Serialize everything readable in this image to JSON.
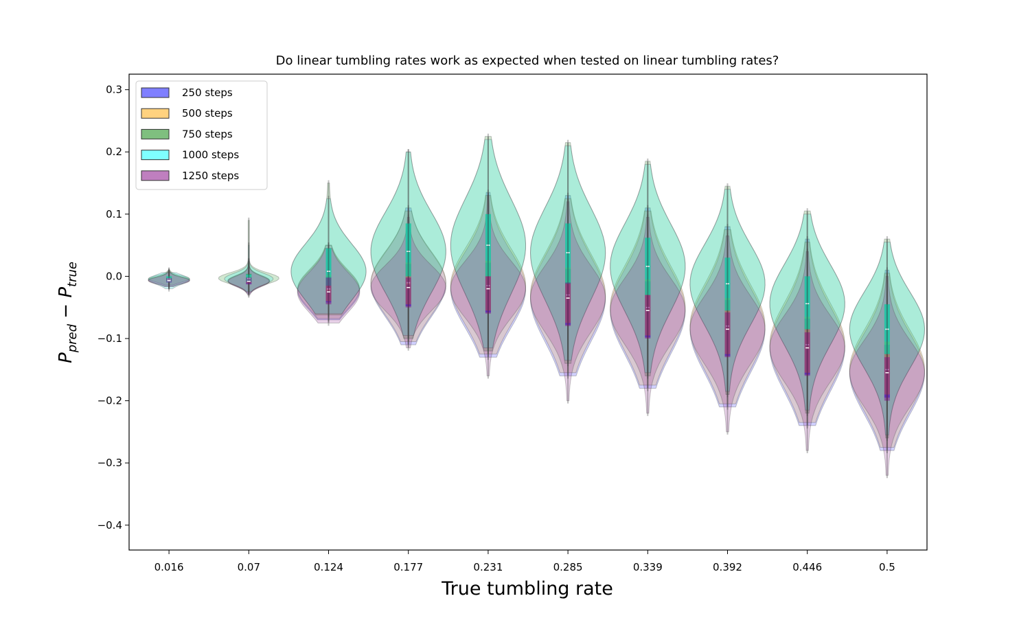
{
  "chart_data": {
    "type": "violin",
    "title": "Do linear tumbling rates work as expected when tested on linear tumbling rates?",
    "xlabel": "True tumbling rate",
    "ylabel_main": "P",
    "ylabel_sub1": "pred",
    "ylabel_minus": " − ",
    "ylabel_sub2": "true",
    "categories": [
      "0.016",
      "0.07",
      "0.124",
      "0.177",
      "0.231",
      "0.285",
      "0.339",
      "0.392",
      "0.446",
      "0.5"
    ],
    "ylim": [
      -0.44,
      0.325
    ],
    "yticks": [
      0.3,
      0.2,
      0.1,
      0.0,
      -0.1,
      -0.2,
      -0.3,
      -0.4
    ],
    "ytick_labels": [
      "0.3",
      "0.2",
      "0.1",
      "0.0",
      "−0.1",
      "−0.2",
      "−0.3",
      "−0.4"
    ],
    "legend_position": "upper-left",
    "series": [
      {
        "name": "250 steps",
        "color": "#0000ff",
        "medians": [
          -0.006,
          -0.007,
          -0.022,
          -0.012,
          -0.02,
          -0.035,
          -0.055,
          -0.085,
          -0.115,
          -0.155
        ],
        "q1": [
          -0.009,
          -0.012,
          -0.042,
          -0.048,
          -0.058,
          -0.078,
          -0.098,
          -0.128,
          -0.158,
          -0.195
        ],
        "q3": [
          -0.002,
          -0.001,
          0.0,
          0.02,
          0.022,
          0.012,
          -0.008,
          -0.038,
          -0.068,
          -0.11
        ],
        "min": [
          -0.016,
          -0.028,
          -0.07,
          -0.11,
          -0.13,
          -0.16,
          -0.18,
          -0.21,
          -0.24,
          -0.28
        ],
        "max": [
          0.008,
          0.025,
          0.05,
          0.11,
          0.135,
          0.13,
          0.11,
          0.08,
          0.06,
          0.01
        ]
      },
      {
        "name": "500 steps",
        "color": "#ffa500",
        "medians": [
          -0.006,
          -0.007,
          -0.02,
          -0.01,
          -0.015,
          -0.03,
          -0.05,
          -0.08,
          -0.11,
          -0.15
        ],
        "q1": [
          -0.009,
          -0.011,
          -0.04,
          -0.045,
          -0.055,
          -0.075,
          -0.095,
          -0.125,
          -0.155,
          -0.19
        ],
        "q3": [
          -0.002,
          0.0,
          0.002,
          0.022,
          0.025,
          0.014,
          -0.005,
          -0.035,
          -0.065,
          -0.105
        ],
        "min": [
          -0.016,
          -0.026,
          -0.068,
          -0.105,
          -0.125,
          -0.155,
          -0.175,
          -0.205,
          -0.235,
          -0.275
        ],
        "max": [
          0.008,
          0.024,
          0.05,
          0.105,
          0.13,
          0.125,
          0.105,
          0.075,
          0.055,
          0.005
        ]
      },
      {
        "name": "750 steps",
        "color": "#008000",
        "medians": [
          -0.004,
          -0.003,
          0.008,
          0.04,
          0.05,
          0.038,
          0.016,
          -0.012,
          -0.044,
          -0.085
        ],
        "q1": [
          -0.007,
          -0.008,
          -0.015,
          0.0,
          0.0,
          -0.012,
          -0.03,
          -0.055,
          -0.085,
          -0.125
        ],
        "q3": [
          0.0,
          0.004,
          0.045,
          0.085,
          0.1,
          0.085,
          0.062,
          0.03,
          0.0,
          -0.045
        ],
        "min": [
          -0.014,
          -0.024,
          -0.062,
          -0.1,
          -0.12,
          -0.14,
          -0.16,
          -0.19,
          -0.22,
          -0.26
        ],
        "max": [
          0.01,
          0.09,
          0.15,
          0.2,
          0.225,
          0.215,
          0.185,
          0.145,
          0.105,
          0.06
        ]
      },
      {
        "name": "1000 steps",
        "color": "#00ffff",
        "medians": [
          -0.005,
          -0.004,
          0.008,
          0.04,
          0.05,
          0.038,
          0.016,
          -0.012,
          -0.044,
          -0.085
        ],
        "q1": [
          -0.01,
          -0.009,
          -0.015,
          0.0,
          0.0,
          -0.012,
          -0.03,
          -0.055,
          -0.085,
          -0.125
        ],
        "q3": [
          0.0,
          0.003,
          0.045,
          0.085,
          0.1,
          0.085,
          0.062,
          0.03,
          0.0,
          -0.045
        ],
        "min": [
          -0.02,
          -0.025,
          -0.06,
          -0.095,
          -0.115,
          -0.135,
          -0.155,
          -0.185,
          -0.215,
          -0.255
        ],
        "max": [
          0.006,
          0.05,
          0.125,
          0.2,
          0.22,
          0.21,
          0.18,
          0.14,
          0.1,
          0.055
        ]
      },
      {
        "name": "1250 steps",
        "color": "#800080",
        "medians": [
          -0.007,
          -0.008,
          -0.025,
          -0.018,
          -0.02,
          -0.035,
          -0.055,
          -0.085,
          -0.115,
          -0.155
        ],
        "q1": [
          -0.01,
          -0.013,
          -0.045,
          -0.05,
          -0.06,
          -0.08,
          -0.1,
          -0.13,
          -0.16,
          -0.2
        ],
        "q3": [
          -0.003,
          -0.002,
          -0.002,
          -0.002,
          0.0,
          -0.01,
          -0.03,
          -0.058,
          -0.09,
          -0.13
        ],
        "min": [
          -0.017,
          -0.03,
          -0.075,
          -0.115,
          -0.16,
          -0.2,
          -0.22,
          -0.25,
          -0.28,
          -0.32
        ],
        "max": [
          0.006,
          0.02,
          0.045,
          0.095,
          0.13,
          0.12,
          0.095,
          0.065,
          0.04,
          0.0
        ]
      }
    ]
  }
}
